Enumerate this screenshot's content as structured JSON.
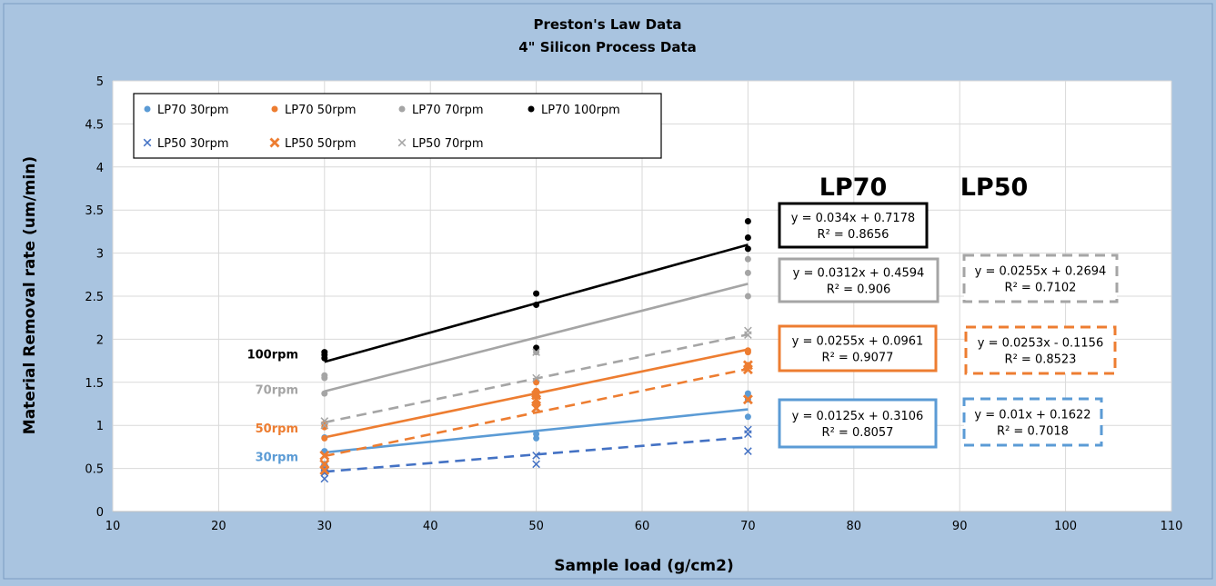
{
  "chart_data": {
    "type": "scatter",
    "title": "Preston's Law Data",
    "subtitle": "4\" Silicon Process Data",
    "xlabel": "Sample load (g/cm2)",
    "ylabel": "Material Removal rate (um/min)",
    "xlim": [
      10,
      110
    ],
    "ylim": [
      0,
      5
    ],
    "xticks": [
      10,
      20,
      30,
      40,
      50,
      60,
      70,
      80,
      90,
      100,
      110
    ],
    "yticks": [
      0,
      0.5,
      1,
      1.5,
      2,
      2.5,
      3,
      3.5,
      4,
      4.5,
      5
    ],
    "grid": true,
    "legend_position": "top-left",
    "series": [
      {
        "name": "LP70 30rpm",
        "marker": "circle",
        "color": "#5b9bd5",
        "x": [
          30,
          30,
          30,
          50,
          50,
          70,
          70,
          70
        ],
        "y": [
          0.55,
          0.7,
          0.86,
          0.85,
          0.9,
          1.1,
          1.3,
          1.37
        ],
        "fit": {
          "slope": 0.0125,
          "intercept": 0.3106,
          "dashed": false
        }
      },
      {
        "name": "LP70 50rpm",
        "marker": "circle",
        "color": "#ed7d31",
        "x": [
          30,
          30,
          30,
          50,
          50,
          50,
          50,
          70,
          70,
          70
        ],
        "y": [
          0.85,
          0.98,
          1.02,
          1.25,
          1.35,
          1.4,
          1.5,
          1.7,
          1.85,
          1.87
        ],
        "fit": {
          "slope": 0.0255,
          "intercept": 0.0961,
          "dashed": false
        }
      },
      {
        "name": "LP70 70rpm",
        "marker": "circle",
        "color": "#a5a5a5",
        "x": [
          30,
          30,
          30,
          50,
          50,
          70,
          70,
          70
        ],
        "y": [
          1.37,
          1.55,
          1.58,
          1.85,
          1.88,
          2.5,
          2.77,
          2.93
        ],
        "fit": {
          "slope": 0.0312,
          "intercept": 0.4594,
          "dashed": false
        }
      },
      {
        "name": "LP70 100rpm",
        "marker": "circle",
        "color": "#000000",
        "x": [
          30,
          30,
          30,
          50,
          50,
          50,
          70,
          70,
          70
        ],
        "y": [
          1.78,
          1.82,
          1.85,
          1.9,
          2.4,
          2.53,
          3.05,
          3.18,
          3.37
        ],
        "fit": {
          "slope": 0.034,
          "intercept": 0.7178,
          "dashed": false
        }
      },
      {
        "name": "LP50 30rpm",
        "marker": "x",
        "color": "#4472c4",
        "x": [
          30,
          30,
          30,
          50,
          50,
          70,
          70,
          70
        ],
        "y": [
          0.38,
          0.45,
          0.5,
          0.55,
          0.65,
          0.7,
          0.9,
          0.95
        ],
        "fit": {
          "slope": 0.01,
          "intercept": 0.1622,
          "dashed": true
        }
      },
      {
        "name": "LP50 50rpm",
        "marker": "x-bold",
        "color": "#ed7d31",
        "x": [
          30,
          30,
          30,
          50,
          50,
          50,
          70,
          70,
          70
        ],
        "y": [
          0.48,
          0.55,
          0.65,
          1.2,
          1.3,
          1.35,
          1.3,
          1.65,
          1.7
        ],
        "fit": {
          "slope": 0.0253,
          "intercept": -0.1156,
          "dashed": true
        }
      },
      {
        "name": "LP50 70rpm",
        "marker": "x",
        "color": "#a5a5a5",
        "x": [
          30,
          30,
          50,
          50,
          70,
          70
        ],
        "y": [
          1.0,
          1.05,
          1.55,
          1.85,
          2.05,
          2.1
        ],
        "fit": {
          "slope": 0.0255,
          "intercept": 0.2694,
          "dashed": true
        }
      }
    ],
    "annotations": {
      "group_headers": [
        "LP70",
        "LP50"
      ],
      "rpm_labels": [
        {
          "text": "100rpm",
          "color": "#000000",
          "y": 1.83
        },
        {
          "text": "70rpm",
          "color": "#a5a5a5",
          "y": 1.42
        },
        {
          "text": "50rpm",
          "color": "#ed7d31",
          "y": 0.97
        },
        {
          "text": "30rpm",
          "color": "#5b9bd5",
          "y": 0.64
        }
      ],
      "equation_boxes": [
        {
          "eq": "y = 0.034x + 0.7178",
          "r2": "R² = 0.8656",
          "color": "#000000",
          "dashed": false,
          "group": "LP70"
        },
        {
          "eq": "y = 0.0312x + 0.4594",
          "r2": "R² = 0.906",
          "color": "#a5a5a5",
          "dashed": false,
          "group": "LP70"
        },
        {
          "eq": "y = 0.0255x + 0.0961",
          "r2": "R² = 0.9077",
          "color": "#ed7d31",
          "dashed": false,
          "group": "LP70"
        },
        {
          "eq": "y = 0.0125x + 0.3106",
          "r2": "R² = 0.8057",
          "color": "#5b9bd5",
          "dashed": false,
          "group": "LP70"
        },
        {
          "eq": "y = 0.0255x + 0.2694",
          "r2": "R² = 0.7102",
          "color": "#a5a5a5",
          "dashed": true,
          "group": "LP50"
        },
        {
          "eq": "y = 0.0253x - 0.1156",
          "r2": "R² = 0.8523",
          "color": "#ed7d31",
          "dashed": true,
          "group": "LP50"
        },
        {
          "eq": "y = 0.01x + 0.1622",
          "r2": "R² = 0.7018",
          "color": "#5b9bd5",
          "dashed": true,
          "group": "LP50"
        }
      ]
    }
  }
}
